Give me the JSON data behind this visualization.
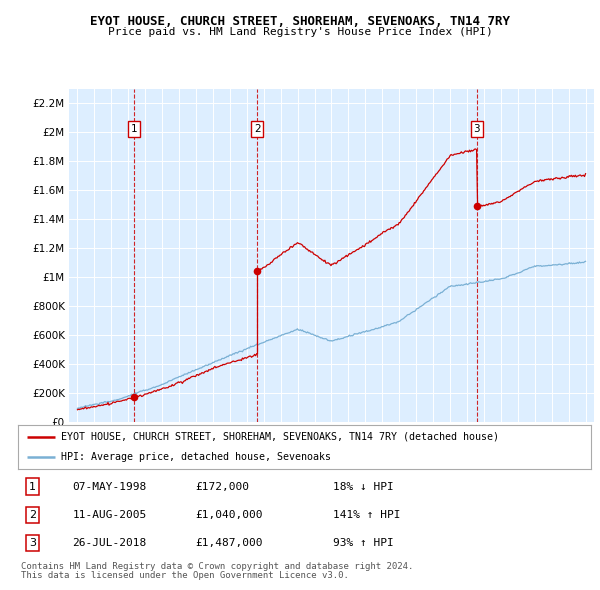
{
  "title": "EYOT HOUSE, CHURCH STREET, SHOREHAM, SEVENOAKS, TN14 7RY",
  "subtitle": "Price paid vs. HM Land Registry's House Price Index (HPI)",
  "legend_line1": "EYOT HOUSE, CHURCH STREET, SHOREHAM, SEVENOAKS, TN14 7RY (detached house)",
  "legend_line2": "HPI: Average price, detached house, Sevenoaks",
  "transactions": [
    {
      "num": 1,
      "date": "07-MAY-1998",
      "price": 172000,
      "pct": "18%",
      "dir": "↓",
      "year": 1998.36
    },
    {
      "num": 2,
      "date": "11-AUG-2005",
      "price": 1040000,
      "pct": "141%",
      "dir": "↑",
      "year": 2005.61
    },
    {
      "num": 3,
      "date": "26-JUL-2018",
      "price": 1487000,
      "pct": "93%",
      "dir": "↑",
      "year": 2018.57
    }
  ],
  "footnote1": "Contains HM Land Registry data © Crown copyright and database right 2024.",
  "footnote2": "This data is licensed under the Open Government Licence v3.0.",
  "red_color": "#cc0000",
  "blue_color": "#7ab0d4",
  "bg_color": "#ddeeff",
  "grid_color": "#ffffff",
  "ylim": [
    0,
    2300000
  ],
  "yticks": [
    0,
    200000,
    400000,
    600000,
    800000,
    1000000,
    1200000,
    1400000,
    1600000,
    1800000,
    2000000,
    2200000
  ],
  "xlim": [
    1994.5,
    2025.5
  ],
  "xticks": [
    1995,
    1996,
    1997,
    1998,
    1999,
    2000,
    2001,
    2002,
    2003,
    2004,
    2005,
    2006,
    2007,
    2008,
    2009,
    2010,
    2011,
    2012,
    2013,
    2014,
    2015,
    2016,
    2017,
    2018,
    2019,
    2020,
    2021,
    2022,
    2023,
    2024,
    2025
  ]
}
